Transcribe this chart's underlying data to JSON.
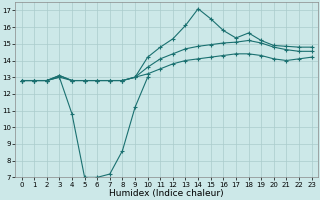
{
  "title": "",
  "xlabel": "Humidex (Indice chaleur)",
  "xlim": [
    -0.5,
    23.5
  ],
  "ylim": [
    7,
    17.5
  ],
  "xticks": [
    0,
    1,
    2,
    3,
    4,
    5,
    6,
    7,
    8,
    9,
    10,
    11,
    12,
    13,
    14,
    15,
    16,
    17,
    18,
    19,
    20,
    21,
    22,
    23
  ],
  "yticks": [
    7,
    8,
    9,
    10,
    11,
    12,
    13,
    14,
    15,
    16,
    17
  ],
  "bg_color": "#cce8e8",
  "grid_color": "#aacccc",
  "line_color": "#1a7070",
  "line1_y": [
    12.8,
    12.8,
    12.8,
    13.0,
    12.8,
    12.8,
    12.8,
    12.8,
    12.8,
    13.0,
    13.2,
    13.5,
    13.8,
    14.0,
    14.1,
    14.2,
    14.3,
    14.4,
    14.4,
    14.3,
    14.1,
    14.0,
    14.1,
    14.2
  ],
  "line2_y": [
    12.8,
    12.8,
    12.8,
    13.1,
    12.8,
    12.8,
    12.8,
    12.8,
    12.8,
    13.0,
    13.6,
    14.1,
    14.4,
    14.7,
    14.85,
    14.95,
    15.05,
    15.1,
    15.2,
    15.05,
    14.8,
    14.65,
    14.55,
    14.55
  ],
  "line3_y": [
    12.8,
    12.8,
    12.8,
    13.1,
    12.8,
    12.8,
    12.8,
    12.8,
    12.8,
    13.0,
    14.2,
    14.8,
    15.3,
    16.1,
    17.1,
    16.5,
    15.8,
    15.35,
    15.65,
    15.2,
    14.9,
    14.85,
    14.8,
    14.8
  ],
  "line4_x": [
    0,
    1,
    2,
    3,
    4,
    5,
    6,
    7,
    8,
    9,
    10
  ],
  "line4_y": [
    12.8,
    12.8,
    12.8,
    13.0,
    10.8,
    7.0,
    7.0,
    7.2,
    8.6,
    11.2,
    13.0
  ],
  "marker": "+",
  "markersize": 3,
  "markeredgewidth": 0.8,
  "linewidth": 0.8,
  "tick_fontsize": 5,
  "label_fontsize": 6.5
}
